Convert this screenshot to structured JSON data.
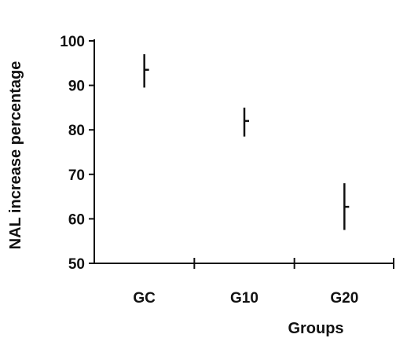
{
  "chart_data": {
    "type": "scatter",
    "title": "",
    "xlabel": "Groups",
    "ylabel": "NAL increase percentage",
    "categories": [
      "GC",
      "G10",
      "G20"
    ],
    "series": [
      {
        "values": [
          93.5,
          82,
          62.7
        ],
        "error_low": [
          89.5,
          78.5,
          57.5
        ],
        "error_high": [
          97,
          85,
          68
        ]
      }
    ],
    "ylim": [
      50,
      100
    ],
    "yticks": [
      "50",
      "60",
      "70",
      "80",
      "90",
      "100"
    ],
    "grid": false,
    "legend": "none",
    "colors": {
      "axis": "#111111",
      "marker": "#111111"
    }
  }
}
